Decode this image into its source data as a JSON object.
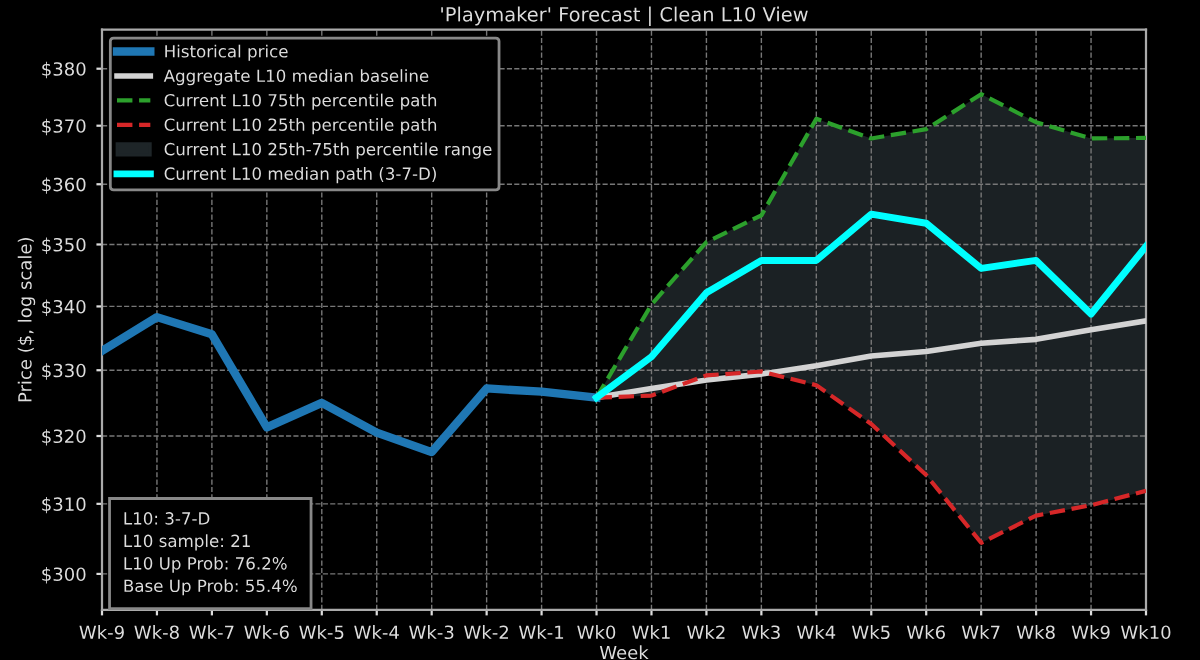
{
  "chart_data": {
    "type": "line",
    "title": "'Playmaker' Forecast | Clean L10 View",
    "xlabel": "Week",
    "ylabel": "Price ($, log scale)",
    "categories": [
      "Wk-9",
      "Wk-8",
      "Wk-7",
      "Wk-6",
      "Wk-5",
      "Wk-4",
      "Wk-3",
      "Wk-2",
      "Wk-1",
      "Wk0",
      "Wk1",
      "Wk2",
      "Wk3",
      "Wk4",
      "Wk5",
      "Wk6",
      "Wk7",
      "Wk8",
      "Wk9",
      "Wk10"
    ],
    "series": [
      {
        "name": "Historical price",
        "color": "#1f77b4",
        "values": [
          333.0,
          338.3,
          335.6,
          321.3,
          325.0,
          320.5,
          317.6,
          327.2,
          326.7,
          325.8,
          null,
          null,
          null,
          null,
          null,
          null,
          null,
          null,
          null,
          null
        ]
      },
      {
        "name": "Aggregate L10 median baseline",
        "color": "#d3d3d3",
        "values": [
          null,
          null,
          null,
          null,
          null,
          null,
          null,
          null,
          null,
          325.8,
          327.2,
          328.5,
          329.4,
          330.7,
          332.2,
          332.9,
          334.2,
          334.8,
          336.3,
          337.7
        ]
      },
      {
        "name": "Current L10 75th percentile path",
        "color": "#2ca02c",
        "line_style": "dashed",
        "values": [
          null,
          null,
          null,
          null,
          null,
          null,
          null,
          null,
          null,
          325.8,
          340.3,
          350.4,
          354.8,
          371.2,
          367.8,
          369.4,
          375.5,
          370.6,
          367.8,
          367.9
        ]
      },
      {
        "name": "Current L10 25th percentile path",
        "color": "#d62728",
        "line_style": "dashed",
        "values": [
          null,
          null,
          null,
          null,
          null,
          null,
          null,
          null,
          null,
          325.8,
          326.1,
          329.2,
          329.8,
          327.7,
          321.8,
          314.2,
          304.4,
          308.3,
          309.8,
          311.9
        ]
      },
      {
        "name": "Current L10 25th-75th percentile range",
        "type": "area",
        "color": "#1e2528",
        "values": [
          null,
          null,
          null,
          null,
          null,
          null,
          null,
          null,
          null,
          null,
          null,
          null,
          null,
          null,
          null,
          null,
          null,
          null,
          null,
          null
        ]
      },
      {
        "name": "Current L10 median path (3-7-D)",
        "color": "#00ffff",
        "lower": [
          null,
          null,
          null,
          null,
          null,
          null,
          null,
          null,
          null,
          325.8,
          326.1,
          329.2,
          329.8,
          327.7,
          321.8,
          314.2,
          304.4,
          308.3,
          309.8,
          311.9
        ],
        "upper": [
          null,
          null,
          null,
          null,
          null,
          null,
          null,
          null,
          null,
          325.8,
          340.3,
          350.4,
          354.8,
          371.2,
          367.8,
          369.4,
          375.5,
          370.6,
          367.8,
          367.9
        ],
        "values": [
          null,
          null,
          null,
          null,
          null,
          null,
          null,
          null,
          null,
          325.8,
          332.1,
          342.2,
          347.4,
          347.4,
          355.0,
          353.5,
          346.1,
          347.4,
          338.8,
          349.7
        ]
      }
    ],
    "log": true,
    "ylim": [
      295,
      387
    ],
    "yticks": [
      {
        "value": 300,
        "label": "$300"
      },
      {
        "value": 310,
        "label": "$310"
      },
      {
        "value": 320,
        "label": "$320"
      },
      {
        "value": 330,
        "label": "$330"
      },
      {
        "value": 340,
        "label": "$340"
      },
      {
        "value": 350,
        "label": "$350"
      },
      {
        "value": 360,
        "label": "$360"
      },
      {
        "value": 370,
        "label": "$370"
      },
      {
        "value": 380,
        "label": "$380"
      }
    ],
    "grid": true,
    "legend": "top left",
    "marker": "none",
    "line_style": "solid",
    "annotations": [
      "L10: 3-7-D",
      "L10 sample: 21",
      "L10 Up Prob: 76.2%",
      "Base Up Prob: 55.4%"
    ]
  }
}
